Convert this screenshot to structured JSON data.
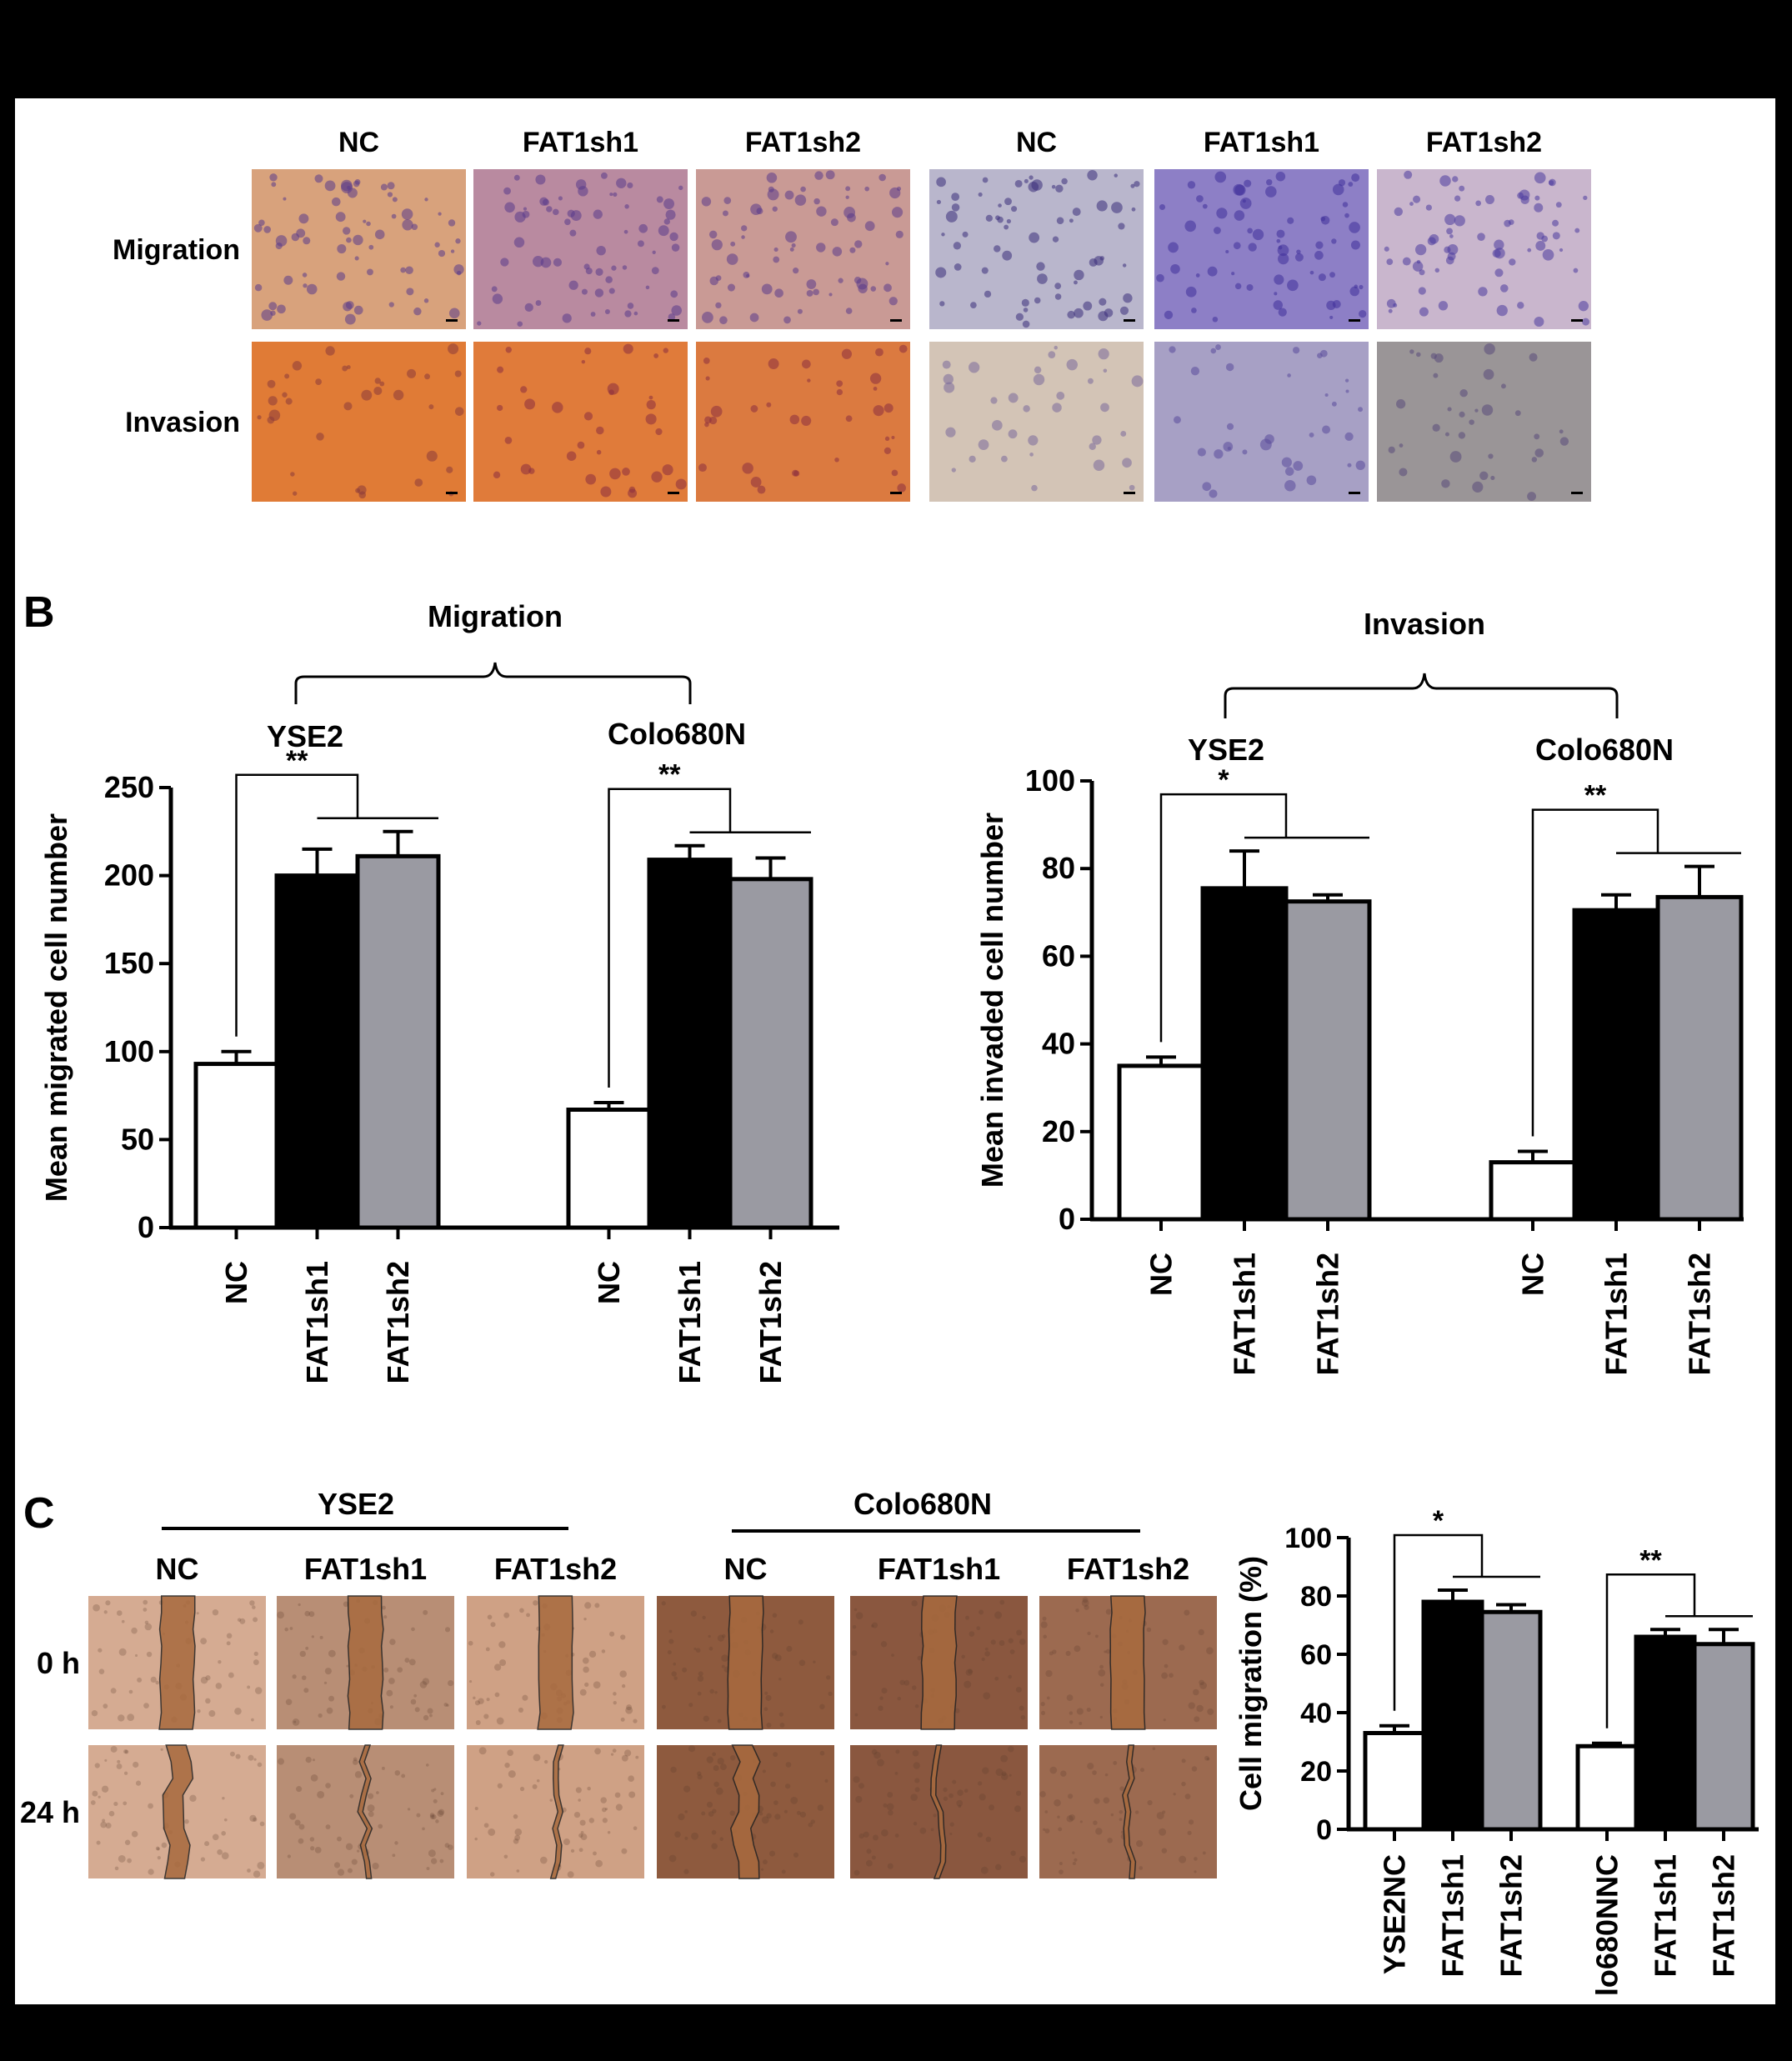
{
  "panelA": {
    "columns": [
      "NC",
      "FAT1sh1",
      "FAT1sh2",
      "NC",
      "FAT1sh1",
      "FAT1sh2"
    ],
    "rows": [
      "Migration",
      "Invasion"
    ],
    "tints": [
      [
        "#d8a27c",
        "#b98aa0",
        "#c99a95",
        "#b9b6cc",
        "#8d7fc6",
        "#c9b6cd"
      ],
      [
        "#e07b36",
        "#e07b3a",
        "#db7a40",
        "#d3c4b6",
        "#a7a0c5",
        "#9a9597"
      ]
    ],
    "dots": [
      "#5a3a8a",
      "#5a3a8a",
      "#5a3a8a",
      "#3a2e7a",
      "#3f2f9a",
      "#4a3a9e",
      "#8a3a3a",
      "#8a2e3e",
      "#8a2e3e",
      "#7a6a9a",
      "#5a4a9a",
      "#5a4a7a"
    ]
  },
  "panelB": {
    "label": "B",
    "migration": {
      "group_title": "Migration",
      "ylabel": "Mean migrated cell number",
      "ticks": [
        "0",
        "50",
        "100",
        "150",
        "200",
        "250"
      ],
      "cell_lines": [
        "YSE2",
        "Colo680N"
      ],
      "sig": [
        "**",
        "**"
      ]
    },
    "invasion": {
      "group_title": "Invasion",
      "ylabel": "Mean invaded cell number",
      "ticks": [
        "0",
        "20",
        "40",
        "60",
        "80",
        "100"
      ],
      "cell_lines": [
        "YSE2",
        "Colo680N"
      ],
      "sig": [
        "*",
        "**"
      ]
    },
    "bar_colors": [
      "#ffffff",
      "#000000",
      "#9a9aa2"
    ]
  },
  "panelC": {
    "label": "C",
    "groups": [
      "YSE2",
      "Colo680N"
    ],
    "columns": [
      "NC",
      "FAT1sh1",
      "FAT1sh2",
      "NC",
      "FAT1sh1",
      "FAT1sh2"
    ],
    "rows": [
      "0 h",
      "24 h"
    ],
    "tints": [
      "#d5ab92",
      "#b88e75",
      "#cfa185",
      "#8e5a3e",
      "#8a573f",
      "#9c6a50"
    ],
    "gap_color": "#a86a3e",
    "ylabel": "Cell migration (%)",
    "ticks": [
      "0",
      "20",
      "40",
      "60",
      "80",
      "100"
    ],
    "sig": [
      "*",
      "**"
    ]
  },
  "chart_data": [
    {
      "type": "bar",
      "title": "Migration",
      "ylabel": "Mean migrated cell number",
      "ylim": [
        0,
        250
      ],
      "groups": [
        "YSE2",
        "Colo680N"
      ],
      "categories": [
        "NC",
        "FAT1sh1",
        "FAT1sh2"
      ],
      "series": [
        {
          "name": "YSE2",
          "values": [
            93,
            200,
            211
          ],
          "errors": [
            7,
            15,
            14
          ]
        },
        {
          "name": "Colo680N",
          "values": [
            67,
            209,
            198
          ],
          "errors": [
            4,
            8,
            12
          ]
        }
      ]
    },
    {
      "type": "bar",
      "title": "Invasion",
      "ylabel": "Mean invaded cell number",
      "ylim": [
        0,
        100
      ],
      "groups": [
        "YSE2",
        "Colo680N"
      ],
      "categories": [
        "NC",
        "FAT1sh1",
        "FAT1sh2"
      ],
      "series": [
        {
          "name": "YSE2",
          "values": [
            35,
            75.5,
            72.5
          ],
          "errors": [
            2,
            8.5,
            1.5
          ]
        },
        {
          "name": "Colo680N",
          "values": [
            13,
            70.5,
            73.5
          ],
          "errors": [
            2.5,
            3.5,
            7
          ]
        }
      ]
    },
    {
      "type": "bar",
      "ylabel": "Cell migration (%)",
      "ylim": [
        0,
        100
      ],
      "categories": [
        "YSE2NC",
        "FAT1sh1",
        "FAT1sh2",
        "lo680NNC",
        "FAT1sh1",
        "FAT1sh2"
      ],
      "values": [
        33,
        78,
        74.5,
        28.5,
        66,
        63.5
      ],
      "errors": [
        2.5,
        4,
        2.5,
        1,
        2.5,
        5
      ]
    }
  ]
}
